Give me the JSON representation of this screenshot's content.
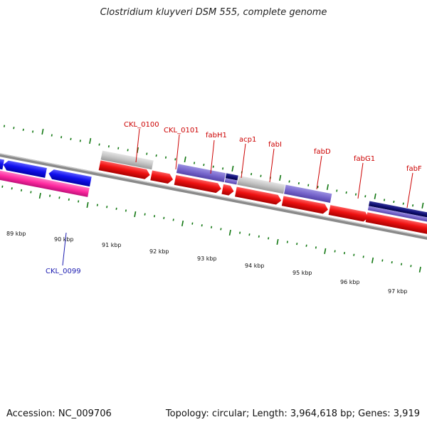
{
  "title": "Clostridium kluyveri DSM 555, complete genome",
  "accession": "Accession: NC_009706",
  "summary": "Topology: circular; Length: 3,964,618 bp; Genes: 3,919",
  "kbp_labels": [
    "89 kbp",
    "90 kbp",
    "91 kbp",
    "92 kbp",
    "93 kbp",
    "94 kbp",
    "95 kbp",
    "96 kbp",
    "97 kbp"
  ],
  "gene_labels": [
    {
      "text": "CKL_0100",
      "strand": "plus"
    },
    {
      "text": "CKL_0101",
      "strand": "plus"
    },
    {
      "text": "fabH1",
      "strand": "plus"
    },
    {
      "text": "acp1",
      "strand": "plus"
    },
    {
      "text": "fabI",
      "strand": "plus"
    },
    {
      "text": "fabD",
      "strand": "plus"
    },
    {
      "text": "fabG1",
      "strand": "plus"
    },
    {
      "text": "fabF",
      "strand": "plus"
    },
    {
      "text": "CKL_0099",
      "strand": "minus"
    }
  ],
  "colors": {
    "forward_gene": "#ee1111",
    "reverse_gene": "#1111ee",
    "rna_magenta": "#ff2aa0",
    "gray_feature": "#c0c0c0",
    "purple_feature": "#7766cc",
    "navy_feature": "#111177",
    "backbone": "#888888",
    "tick": "#117711"
  }
}
